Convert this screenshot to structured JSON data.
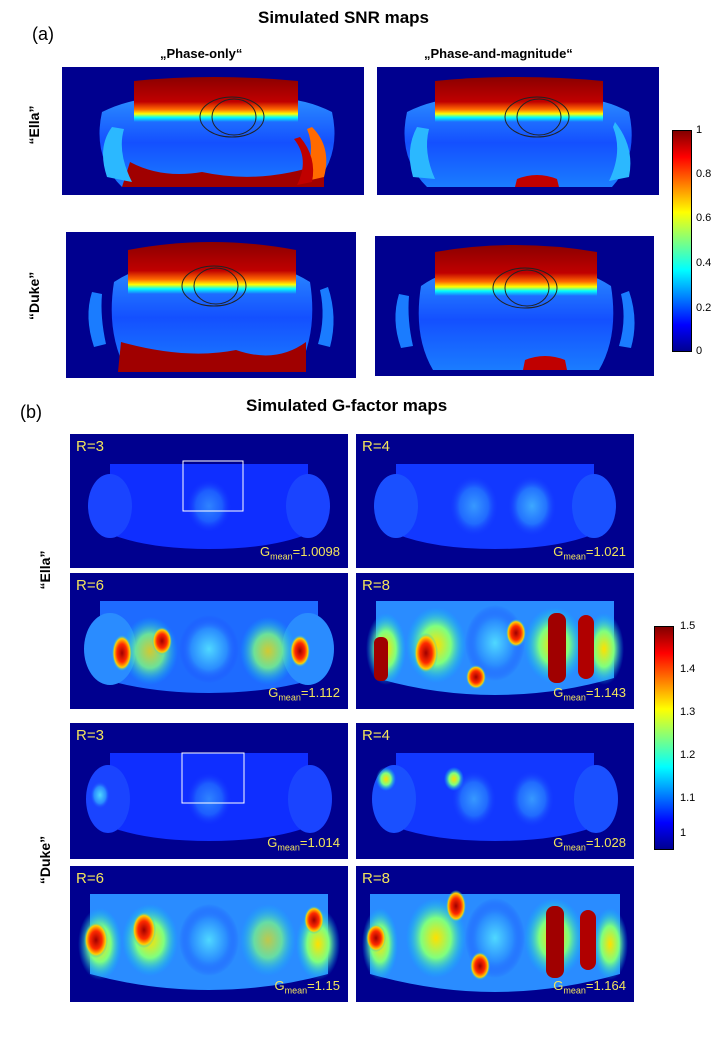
{
  "panel_a": {
    "letter": "(a)",
    "title": "Simulated SNR maps",
    "col_headers": [
      "„Phase-only“",
      "„Phase-and-magnitude“"
    ],
    "row_labels": [
      "“Ella”",
      "“Duke”"
    ],
    "colorbar_ticks": [
      "1",
      "0.8",
      "0.6",
      "0.4",
      "0.2",
      "0"
    ]
  },
  "panel_b": {
    "letter": "(b)",
    "title": "Simulated G-factor  maps",
    "row_labels": [
      "“Ella”",
      "“Duke”"
    ],
    "colorbar_ticks": [
      "1.5",
      "1.4",
      "1.3",
      "1.2",
      "1.1",
      "1"
    ],
    "ella": [
      {
        "r": "R=3",
        "g_label": "G",
        "g_sub": "mean",
        "g_value": "=1.0098"
      },
      {
        "r": "R=4",
        "g_label": "G",
        "g_sub": "mean",
        "g_value": "=1.021"
      },
      {
        "r": "R=6",
        "g_label": "G",
        "g_sub": "mean",
        "g_value": "=1.112"
      },
      {
        "r": "R=8",
        "g_label": "G",
        "g_sub": "mean",
        "g_value": "=1.143"
      }
    ],
    "duke": [
      {
        "r": "R=3",
        "g_label": "G",
        "g_sub": "mean",
        "g_value": "=1.014"
      },
      {
        "r": "R=4",
        "g_label": "G",
        "g_sub": "mean",
        "g_value": "=1.028"
      },
      {
        "r": "R=6",
        "g_label": "G",
        "g_sub": "mean",
        "g_value": "=1.15"
      },
      {
        "r": "R=8",
        "g_label": "G",
        "g_sub": "mean",
        "g_value": "=1.164"
      }
    ]
  },
  "colors": {
    "background_map": "#00008f",
    "annotation_yellow": "#f2e45c"
  }
}
